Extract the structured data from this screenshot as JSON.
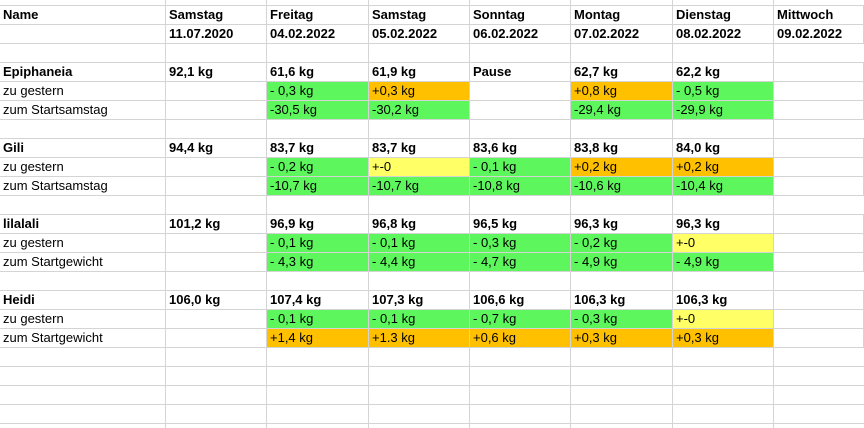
{
  "header": {
    "name": "Name",
    "days": [
      {
        "day": "Samstag",
        "date": "11.07.2020"
      },
      {
        "day": "Freitag",
        "date": "04.02.2022"
      },
      {
        "day": "Samstag",
        "date": "05.02.2022"
      },
      {
        "day": "Sonntag",
        "date": "06.02.2022"
      },
      {
        "day": "Montag",
        "date": "07.02.2022"
      },
      {
        "day": "Dienstag",
        "date": "08.02.2022"
      },
      {
        "day": "Mittwoch",
        "date": "09.02.2022"
      }
    ]
  },
  "colors": {
    "green": "#5df75d",
    "orange": "#ffc000",
    "yellow": "#ffff66",
    "grid": "#d4d4d4"
  },
  "persons": [
    {
      "name": "Epiphaneia",
      "weights": [
        "92,1 kg",
        "61,6 kg",
        "61,9 kg",
        "Pause",
        "62,7 kg",
        "62,2 kg",
        ""
      ],
      "rows": [
        {
          "label": "zu gestern",
          "values": [
            "",
            "- 0,3 kg",
            "+0,3 kg",
            "",
            "+0,8 kg",
            "- 0,5 kg",
            ""
          ],
          "colors": [
            "",
            "green",
            "orange",
            "",
            "orange",
            "green",
            ""
          ]
        },
        {
          "label": "zum Startsamstag",
          "values": [
            "",
            "-30,5 kg",
            "-30,2 kg",
            "",
            "-29,4 kg",
            "-29,9 kg",
            ""
          ],
          "colors": [
            "",
            "green",
            "green",
            "",
            "green",
            "green",
            ""
          ]
        }
      ]
    },
    {
      "name": "Gili",
      "weights": [
        "94,4 kg",
        "83,7 kg",
        "83,7 kg",
        "83,6 kg",
        "83,8 kg",
        "84,0 kg",
        ""
      ],
      "rows": [
        {
          "label": "zu gestern",
          "values": [
            "",
            "- 0,2 kg",
            "+-0",
            "- 0,1 kg",
            "+0,2 kg",
            "+0,2 kg",
            ""
          ],
          "colors": [
            "",
            "green",
            "yellow",
            "green",
            "orange",
            "orange",
            ""
          ]
        },
        {
          "label": "zum Startsamstag",
          "values": [
            "",
            "-10,7 kg",
            "-10,7 kg",
            "-10,8 kg",
            "-10,6 kg",
            "-10,4 kg",
            ""
          ],
          "colors": [
            "",
            "green",
            "green",
            "green",
            "green",
            "green",
            ""
          ]
        }
      ]
    },
    {
      "name": "lilalali",
      "weights": [
        "101,2 kg",
        "96,9 kg",
        "96,8 kg",
        "96,5 kg",
        "96,3 kg",
        "96,3 kg",
        ""
      ],
      "rows": [
        {
          "label": "zu gestern",
          "values": [
            "",
            "- 0,1 kg",
            "- 0,1 kg",
            "- 0,3 kg",
            "- 0,2 kg",
            "+-0",
            ""
          ],
          "colors": [
            "",
            "green",
            "green",
            "green",
            "green",
            "yellow",
            ""
          ]
        },
        {
          "label": "zum Startgewicht",
          "values": [
            "",
            "- 4,3 kg",
            "- 4,4 kg",
            "- 4,7 kg",
            "- 4,9 kg",
            "- 4,9 kg",
            ""
          ],
          "colors": [
            "",
            "green",
            "green",
            "green",
            "green",
            "green",
            ""
          ]
        }
      ]
    },
    {
      "name": "Heidi",
      "weights": [
        "106,0 kg",
        "107,4 kg",
        "107,3 kg",
        "106,6 kg",
        "106,3 kg",
        "106,3 kg",
        ""
      ],
      "rows": [
        {
          "label": "zu gestern",
          "values": [
            "",
            "- 0,1 kg",
            "- 0,1 kg",
            "- 0,7 kg",
            "- 0,3 kg",
            "+-0",
            ""
          ],
          "colors": [
            "",
            "green",
            "green",
            "green",
            "green",
            "yellow",
            ""
          ]
        },
        {
          "label": "zum Startgewicht",
          "values": [
            "",
            "+1,4 kg",
            "+1.3 kg",
            "+0,6 kg",
            "+0,3 kg",
            "+0,3 kg",
            ""
          ],
          "colors": [
            "",
            "orange",
            "orange",
            "orange",
            "orange",
            "orange",
            ""
          ]
        }
      ]
    }
  ]
}
